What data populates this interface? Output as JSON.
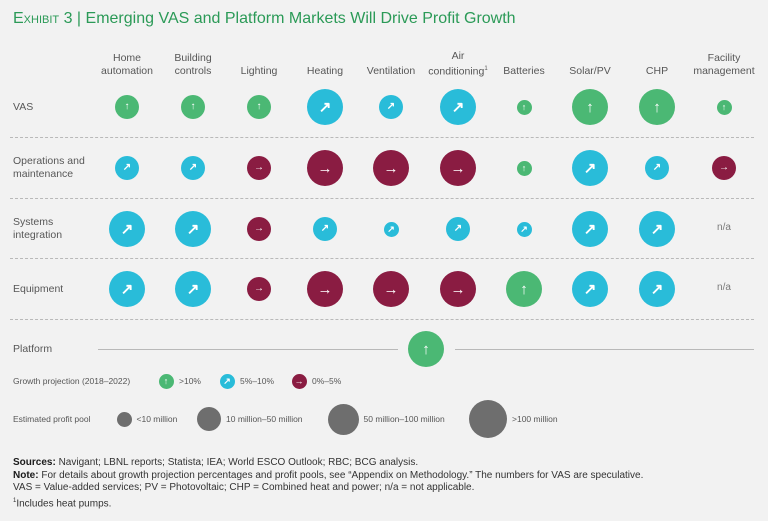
{
  "colors": {
    "up": "#4bb874",
    "upright": "#29bcd9",
    "right": "#8a1c42",
    "size": "#6e6e6e",
    "title": "#2b9a57"
  },
  "title": {
    "prefix": "Exhibit 3",
    "sep": "|",
    "main": "Emerging VAS and Platform Markets Will Drive Profit Growth"
  },
  "chart_data": {
    "type": "bubble-matrix",
    "columns": [
      "Home automation",
      "Building controls",
      "Lighting",
      "Heating",
      "Ventilation",
      "Air conditioning",
      "Batteries",
      "Solar/PV",
      "CHP",
      "Facility management"
    ],
    "column_lines": [
      [
        "Home",
        "automation"
      ],
      [
        "Building",
        "controls"
      ],
      [
        "Lighting"
      ],
      [
        "Heating"
      ],
      [
        "Ventilation"
      ],
      [
        "Air",
        "conditioning"
      ],
      [
        "Batteries"
      ],
      [
        "Solar/PV"
      ],
      [
        "CHP"
      ],
      [
        "Facility",
        "management"
      ]
    ],
    "footnote_mark": "1",
    "rows": [
      {
        "name": "VAS",
        "lines": [
          "VAS"
        ],
        "cells": [
          {
            "growth": ">10%",
            "pool": "10 million–50 million"
          },
          {
            "growth": ">10%",
            "pool": "10 million–50 million"
          },
          {
            "growth": ">10%",
            "pool": "10 million–50 million"
          },
          {
            "growth": "5%–10%",
            "pool": "50 million–100 million"
          },
          {
            "growth": "5%–10%",
            "pool": "10 million–50 million"
          },
          {
            "growth": "5%–10%",
            "pool": "50 million–100 million"
          },
          {
            "growth": ">10%",
            "pool": "<10 million"
          },
          {
            "growth": ">10%",
            "pool": ">100 million"
          },
          {
            "growth": ">10%",
            "pool": "50 million–100 million"
          },
          {
            "growth": ">10%",
            "pool": "<10 million"
          }
        ]
      },
      {
        "name": "Operations and maintenance",
        "lines": [
          "Operations and",
          "maintenance"
        ],
        "cells": [
          {
            "growth": "5%–10%",
            "pool": "10 million–50 million"
          },
          {
            "growth": "5%–10%",
            "pool": "10 million–50 million"
          },
          {
            "growth": "0%–5%",
            "pool": "10 million–50 million"
          },
          {
            "growth": "0%–5%",
            "pool": ">100 million"
          },
          {
            "growth": "0%–5%",
            "pool": ">100 million"
          },
          {
            "growth": "0%–5%",
            "pool": ">100 million"
          },
          {
            "growth": ">10%",
            "pool": "<10 million"
          },
          {
            "growth": "5%–10%",
            "pool": ">100 million"
          },
          {
            "growth": "5%–10%",
            "pool": "10 million–50 million"
          },
          {
            "growth": "0%–5%",
            "pool": "10 million–50 million"
          }
        ]
      },
      {
        "name": "Systems integration",
        "lines": [
          "Systems",
          "integration"
        ],
        "cells": [
          {
            "growth": "5%–10%",
            "pool": ">100 million"
          },
          {
            "growth": "5%–10%",
            "pool": ">100 million"
          },
          {
            "growth": "0%–5%",
            "pool": "10 million–50 million"
          },
          {
            "growth": "5%–10%",
            "pool": "10 million–50 million"
          },
          {
            "growth": "5%–10%",
            "pool": "<10 million"
          },
          {
            "growth": "5%–10%",
            "pool": "10 million–50 million"
          },
          {
            "growth": "5%–10%",
            "pool": "<10 million"
          },
          {
            "growth": "5%–10%",
            "pool": ">100 million"
          },
          {
            "growth": "5%–10%",
            "pool": ">100 million"
          },
          {
            "na": "n/a"
          }
        ]
      },
      {
        "name": "Equipment",
        "lines": [
          "Equipment"
        ],
        "cells": [
          {
            "growth": "5%–10%",
            "pool": ">100 million"
          },
          {
            "growth": "5%–10%",
            "pool": ">100 million"
          },
          {
            "growth": "0%–5%",
            "pool": "10 million–50 million"
          },
          {
            "growth": "0%–5%",
            "pool": ">100 million"
          },
          {
            "growth": "0%–5%",
            "pool": ">100 million"
          },
          {
            "growth": "0%–5%",
            "pool": ">100 million"
          },
          {
            "growth": ">10%",
            "pool": ">100 million"
          },
          {
            "growth": "5%–10%",
            "pool": ">100 million"
          },
          {
            "growth": "5%–10%",
            "pool": ">100 million"
          },
          {
            "na": "n/a"
          }
        ]
      }
    ],
    "platform": {
      "label": "Platform",
      "growth": ">10%",
      "pool": ">100 million"
    },
    "legend": {
      "growth_title": "Growth projection (2018–2022)",
      "growth": [
        {
          "label": ">10%",
          "key": "up"
        },
        {
          "label": "5%–10%",
          "key": "upright"
        },
        {
          "label": "0%–5%",
          "key": "right"
        }
      ],
      "pool_title": "Estimated profit pool",
      "pool": [
        "<10 million",
        "10 million–50 million",
        "50 million–100 million",
        ">100 million"
      ]
    }
  },
  "notes": {
    "sources_label": "Sources:",
    "sources": "Navigant; LBNL reports; Statista; IEA; World ESCO Outlook; RBC; BCG analysis.",
    "note_label": "Note:",
    "note": "For details about growth projection percentages and profit pools, see “Appendix on Methodology.” The numbers for VAS are speculative.",
    "abbrev": "VAS = Value-added services; PV = Photovoltaic; CHP = Combined heat and power; n/a = not applicable.",
    "footnote": "Includes heat pumps."
  }
}
